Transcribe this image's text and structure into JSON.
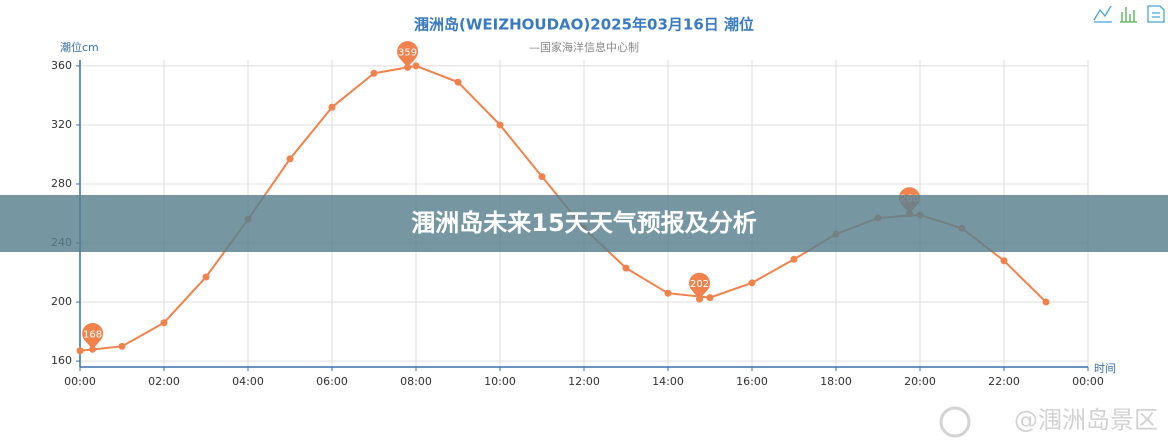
{
  "chart_data": {
    "type": "line",
    "title": "涠洲岛(WEIZHOUDAO)2025年03月16日 潮位",
    "subtitle": "—国家海洋信息中心制",
    "y_label": "潮位cm",
    "x_label": "时间",
    "x": [
      0,
      1,
      2,
      3,
      4,
      5,
      6,
      7,
      8,
      9,
      10,
      11,
      12,
      13,
      14,
      15,
      16,
      17,
      18,
      19,
      20,
      21,
      22,
      23
    ],
    "series": [
      {
        "color": "#f0824e",
        "values": [
          167,
          170,
          186,
          217,
          256,
          297,
          332,
          355,
          360,
          349,
          320,
          285,
          250,
          223,
          206,
          203,
          213,
          229,
          246,
          257,
          259,
          250,
          228,
          200
        ]
      }
    ],
    "extremes": {
      "x": [
        0.3,
        7.8,
        14.75,
        19.75
      ],
      "values": [
        168,
        359,
        202,
        260
      ]
    },
    "xlim": [
      0,
      24
    ],
    "xticks": [
      {
        "value": 0,
        "label": "00:00"
      },
      {
        "value": 2,
        "label": "02:00"
      },
      {
        "value": 4,
        "label": "04:00"
      },
      {
        "value": 6,
        "label": "06:00"
      },
      {
        "value": 8,
        "label": "08:00"
      },
      {
        "value": 10,
        "label": "10:00"
      },
      {
        "value": 12,
        "label": "12:00"
      },
      {
        "value": 14,
        "label": "14:00"
      },
      {
        "value": 16,
        "label": "16:00"
      },
      {
        "value": 18,
        "label": "18:00"
      },
      {
        "value": 20,
        "label": "20:00"
      },
      {
        "value": 22,
        "label": "22:00"
      },
      {
        "value": 24,
        "label": "00:00"
      }
    ],
    "ylim": [
      156,
      364
    ],
    "yticks": [
      160,
      200,
      240,
      280,
      320,
      360
    ],
    "grid": true
  },
  "overlay": {
    "banner": "涠洲岛未来15天天气预报及分析",
    "watermark": "@涠洲岛景区"
  }
}
